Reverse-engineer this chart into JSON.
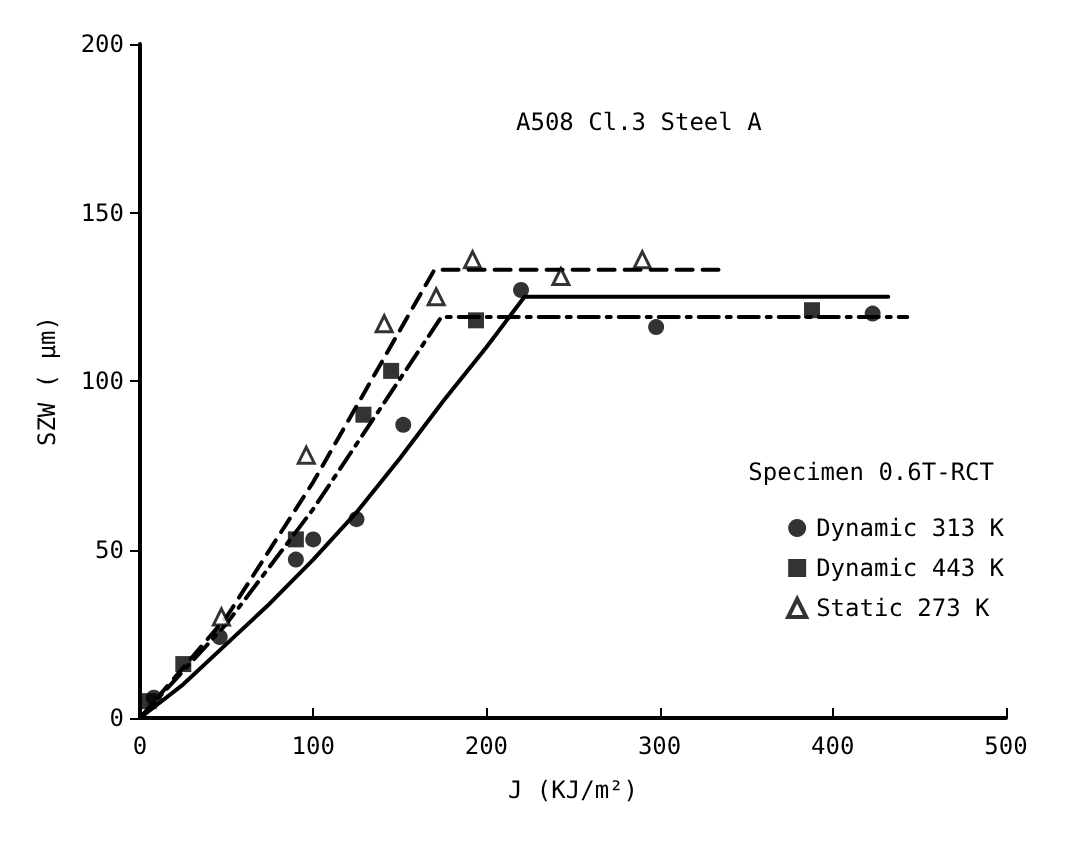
{
  "chart_data": {
    "type": "scatter",
    "title": "A508 Cl.3 Steel A",
    "xlabel": "J (KJ/m²)",
    "ylabel": "SZW ( μm)",
    "legend_title": "Specimen 0.6T-RCT",
    "xlim": [
      0,
      500
    ],
    "ylim": [
      0,
      200
    ],
    "xticks": [
      0,
      100,
      200,
      300,
      400,
      500
    ],
    "yticks": [
      0,
      50,
      100,
      150,
      200
    ],
    "grid": false,
    "legend": "right",
    "series": [
      {
        "name": "Dynamic 313 K",
        "color": "#000000",
        "marker": "circle",
        "x": [
          8,
          46,
          90,
          100,
          125,
          152,
          220,
          298,
          423
        ],
        "values": [
          6,
          24,
          47,
          53,
          59,
          87,
          127,
          116,
          120
        ]
      },
      {
        "name": "Dynamic 443 K",
        "color": "#000000",
        "marker": "square",
        "x": [
          5,
          25,
          90,
          129,
          145,
          194,
          388
        ],
        "values": [
          5,
          16,
          53,
          90,
          103,
          118,
          121
        ]
      },
      {
        "name": "Static 273 K",
        "color": "#000000",
        "marker": "triangle",
        "x": [
          47,
          96,
          141,
          171,
          192,
          243,
          290
        ],
        "values": [
          30,
          78,
          117,
          125,
          136,
          131,
          136
        ]
      },
      {
        "type": "line",
        "color": "#000000",
        "marker": "none",
        "line_style": "solid",
        "x": [
          0,
          25,
          50,
          75,
          100,
          125,
          150,
          175,
          200,
          222,
          432
        ],
        "values": [
          0,
          10,
          22,
          34,
          47,
          61,
          77,
          94,
          110,
          125,
          125
        ]
      },
      {
        "type": "line",
        "color": "#000000",
        "marker": "none",
        "line_style": "dashdot",
        "x": [
          0,
          50,
          100,
          174,
          443
        ],
        "values": [
          0,
          28,
          62,
          119,
          119
        ]
      },
      {
        "type": "line",
        "color": "#000000",
        "marker": "none",
        "line_style": "dashed",
        "x": [
          0,
          50,
          100,
          170,
          334
        ],
        "values": [
          0,
          30,
          70,
          133,
          133
        ]
      }
    ]
  }
}
